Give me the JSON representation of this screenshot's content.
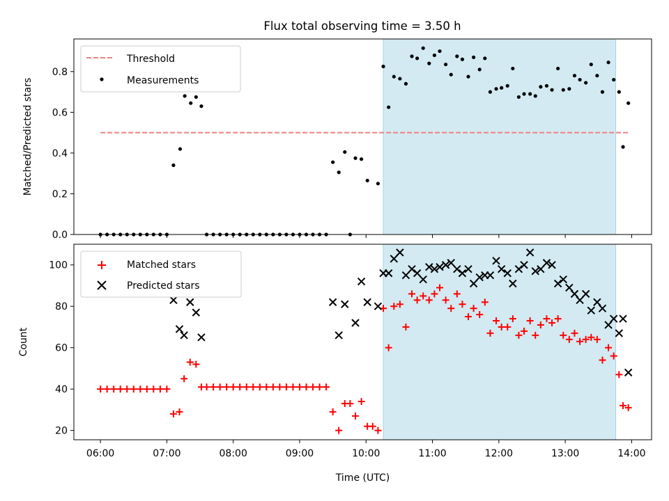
{
  "chart_data": [
    {
      "type": "scatter",
      "title": "Flux total observing time = 3.50 h",
      "xlabel": "",
      "ylabel": "Matched/Predicted stars",
      "xlim": [
        5.6,
        14.3
      ],
      "ylim": [
        0,
        0.96
      ],
      "yticks": [
        0,
        0.2,
        0.4,
        0.6,
        0.8
      ],
      "ytick_labels": [
        "0.0",
        "0.2",
        "0.4",
        "0.6",
        "0.8"
      ],
      "grid": false,
      "legend_position": "upper-left",
      "shaded_interval": {
        "start": 10.26,
        "end": 13.76,
        "color": "#d3eaf2"
      },
      "threshold": {
        "name": "Threshold",
        "value": 0.5,
        "x_start": 6.0,
        "x_end": 13.95,
        "color": "#f08080",
        "style": "dashed"
      },
      "series": [
        {
          "name": "Measurements",
          "marker": "dot",
          "color": "#000000",
          "points": [
            [
              6.0,
              0
            ],
            [
              6.1,
              0
            ],
            [
              6.2,
              0
            ],
            [
              6.3,
              0
            ],
            [
              6.4,
              0
            ],
            [
              6.5,
              0
            ],
            [
              6.6,
              0
            ],
            [
              6.7,
              0
            ],
            [
              6.8,
              0
            ],
            [
              6.9,
              0
            ],
            [
              7.0,
              0
            ],
            [
              7.1,
              0.34
            ],
            [
              7.2,
              0.42
            ],
            [
              7.27,
              0.68
            ],
            [
              7.36,
              0.645
            ],
            [
              7.44,
              0.675
            ],
            [
              7.52,
              0.63
            ],
            [
              7.6,
              0
            ],
            [
              7.7,
              0
            ],
            [
              7.8,
              0
            ],
            [
              7.9,
              0
            ],
            [
              8.0,
              0
            ],
            [
              8.1,
              0
            ],
            [
              8.2,
              0
            ],
            [
              8.3,
              0
            ],
            [
              8.4,
              0
            ],
            [
              8.5,
              0
            ],
            [
              8.6,
              0
            ],
            [
              8.7,
              0
            ],
            [
              8.8,
              0
            ],
            [
              8.9,
              0
            ],
            [
              9.0,
              0
            ],
            [
              9.1,
              0
            ],
            [
              9.2,
              0
            ],
            [
              9.3,
              0
            ],
            [
              9.4,
              0
            ],
            [
              9.5,
              0.355
            ],
            [
              9.59,
              0.305
            ],
            [
              9.68,
              0.405
            ],
            [
              9.76,
              0
            ],
            [
              9.84,
              0.375
            ],
            [
              9.93,
              0.37
            ],
            [
              10.02,
              0.265
            ],
            [
              10.18,
              0.25
            ],
            [
              10.26,
              0.825
            ],
            [
              10.34,
              0.625
            ],
            [
              10.42,
              0.775
            ],
            [
              10.51,
              0.765
            ],
            [
              10.6,
              0.74
            ],
            [
              10.69,
              0.875
            ],
            [
              10.77,
              0.865
            ],
            [
              10.86,
              0.915
            ],
            [
              10.95,
              0.84
            ],
            [
              11.03,
              0.88
            ],
            [
              11.11,
              0.9
            ],
            [
              11.2,
              0.835
            ],
            [
              11.28,
              0.785
            ],
            [
              11.37,
              0.875
            ],
            [
              11.45,
              0.86
            ],
            [
              11.54,
              0.775
            ],
            [
              11.62,
              0.87
            ],
            [
              11.71,
              0.81
            ],
            [
              11.79,
              0.865
            ],
            [
              11.87,
              0.7
            ],
            [
              11.96,
              0.715
            ],
            [
              12.04,
              0.72
            ],
            [
              12.13,
              0.73
            ],
            [
              12.21,
              0.815
            ],
            [
              12.3,
              0.675
            ],
            [
              12.38,
              0.69
            ],
            [
              12.47,
              0.69
            ],
            [
              12.55,
              0.68
            ],
            [
              12.63,
              0.725
            ],
            [
              12.72,
              0.73
            ],
            [
              12.8,
              0.71
            ],
            [
              12.89,
              0.815
            ],
            [
              12.97,
              0.71
            ],
            [
              13.06,
              0.715
            ],
            [
              13.14,
              0.78
            ],
            [
              13.22,
              0.76
            ],
            [
              13.31,
              0.745
            ],
            [
              13.39,
              0.835
            ],
            [
              13.48,
              0.78
            ],
            [
              13.56,
              0.7
            ],
            [
              13.65,
              0.845
            ],
            [
              13.73,
              0.76
            ],
            [
              13.81,
              0.7
            ],
            [
              13.87,
              0.43
            ],
            [
              13.95,
              0.645
            ]
          ]
        }
      ]
    },
    {
      "type": "scatter",
      "title": "",
      "xlabel": "Time (UTC)",
      "ylabel": "Count",
      "xlim": [
        5.6,
        14.3
      ],
      "ylim": [
        15.5,
        110
      ],
      "xticks": [
        6,
        7,
        8,
        9,
        10,
        11,
        12,
        13,
        14
      ],
      "xtick_labels": [
        "06:00",
        "07:00",
        "08:00",
        "09:00",
        "10:00",
        "11:00",
        "12:00",
        "13:00",
        "14:00"
      ],
      "yticks": [
        20,
        40,
        60,
        80,
        100
      ],
      "ytick_labels": [
        "20",
        "40",
        "60",
        "80",
        "100"
      ],
      "grid": false,
      "legend_position": "upper-left",
      "shaded_interval": {
        "start": 10.26,
        "end": 13.76,
        "color": "#d3eaf2"
      },
      "series": [
        {
          "name": "Matched stars",
          "marker": "plus",
          "color": "#ff0000",
          "points": [
            [
              6.0,
              40
            ],
            [
              6.1,
              40
            ],
            [
              6.2,
              40
            ],
            [
              6.3,
              40
            ],
            [
              6.4,
              40
            ],
            [
              6.5,
              40
            ],
            [
              6.6,
              40
            ],
            [
              6.7,
              40
            ],
            [
              6.8,
              40
            ],
            [
              6.9,
              40
            ],
            [
              7.0,
              40
            ],
            [
              7.1,
              28
            ],
            [
              7.19,
              29
            ],
            [
              7.26,
              45
            ],
            [
              7.35,
              53
            ],
            [
              7.44,
              52
            ],
            [
              7.52,
              41
            ],
            [
              7.6,
              41
            ],
            [
              7.7,
              41
            ],
            [
              7.8,
              41
            ],
            [
              7.9,
              41
            ],
            [
              8.0,
              41
            ],
            [
              8.1,
              41
            ],
            [
              8.2,
              41
            ],
            [
              8.3,
              41
            ],
            [
              8.4,
              41
            ],
            [
              8.5,
              41
            ],
            [
              8.6,
              41
            ],
            [
              8.7,
              41
            ],
            [
              8.8,
              41
            ],
            [
              8.9,
              41
            ],
            [
              9.0,
              41
            ],
            [
              9.1,
              41
            ],
            [
              9.2,
              41
            ],
            [
              9.3,
              41
            ],
            [
              9.4,
              41
            ],
            [
              9.5,
              29
            ],
            [
              9.59,
              20
            ],
            [
              9.68,
              33
            ],
            [
              9.76,
              33
            ],
            [
              9.84,
              27
            ],
            [
              9.93,
              34
            ],
            [
              10.02,
              22
            ],
            [
              10.1,
              22
            ],
            [
              10.18,
              20
            ],
            [
              10.26,
              79
            ],
            [
              10.34,
              60
            ],
            [
              10.42,
              80
            ],
            [
              10.51,
              81
            ],
            [
              10.6,
              70
            ],
            [
              10.69,
              86
            ],
            [
              10.77,
              83
            ],
            [
              10.86,
              85
            ],
            [
              10.95,
              83
            ],
            [
              11.03,
              86
            ],
            [
              11.11,
              89
            ],
            [
              11.2,
              83
            ],
            [
              11.28,
              79
            ],
            [
              11.37,
              86
            ],
            [
              11.45,
              81
            ],
            [
              11.54,
              75
            ],
            [
              11.62,
              79
            ],
            [
              11.71,
              76
            ],
            [
              11.79,
              82
            ],
            [
              11.87,
              67
            ],
            [
              11.96,
              73
            ],
            [
              12.04,
              70
            ],
            [
              12.13,
              70
            ],
            [
              12.21,
              74
            ],
            [
              12.3,
              66
            ],
            [
              12.38,
              68
            ],
            [
              12.47,
              73
            ],
            [
              12.55,
              66
            ],
            [
              12.63,
              71
            ],
            [
              12.72,
              74
            ],
            [
              12.8,
              72
            ],
            [
              12.89,
              74
            ],
            [
              12.97,
              66
            ],
            [
              13.06,
              64
            ],
            [
              13.14,
              67
            ],
            [
              13.22,
              63
            ],
            [
              13.31,
              64
            ],
            [
              13.39,
              65
            ],
            [
              13.48,
              64
            ],
            [
              13.56,
              54
            ],
            [
              13.65,
              60
            ],
            [
              13.73,
              56
            ],
            [
              13.81,
              47
            ],
            [
              13.87,
              32
            ],
            [
              13.95,
              31
            ]
          ]
        },
        {
          "name": "Predicted stars",
          "marker": "x",
          "color": "#000000",
          "points": [
            [
              7.1,
              83
            ],
            [
              7.19,
              69
            ],
            [
              7.26,
              66
            ],
            [
              7.35,
              82
            ],
            [
              7.44,
              77
            ],
            [
              7.52,
              65
            ],
            [
              9.5,
              82
            ],
            [
              9.59,
              66
            ],
            [
              9.68,
              81
            ],
            [
              9.84,
              72
            ],
            [
              9.93,
              92
            ],
            [
              10.02,
              82
            ],
            [
              10.18,
              80
            ],
            [
              10.26,
              96
            ],
            [
              10.34,
              96
            ],
            [
              10.42,
              103
            ],
            [
              10.51,
              106
            ],
            [
              10.6,
              95
            ],
            [
              10.69,
              98
            ],
            [
              10.77,
              96
            ],
            [
              10.86,
              93
            ],
            [
              10.95,
              99
            ],
            [
              11.03,
              98
            ],
            [
              11.11,
              99
            ],
            [
              11.2,
              100
            ],
            [
              11.28,
              101
            ],
            [
              11.37,
              98
            ],
            [
              11.45,
              96
            ],
            [
              11.54,
              98
            ],
            [
              11.62,
              91
            ],
            [
              11.71,
              94
            ],
            [
              11.79,
              95
            ],
            [
              11.87,
              95
            ],
            [
              11.96,
              102
            ],
            [
              12.04,
              98
            ],
            [
              12.13,
              96
            ],
            [
              12.21,
              91
            ],
            [
              12.3,
              98
            ],
            [
              12.38,
              100
            ],
            [
              12.47,
              106
            ],
            [
              12.55,
              97
            ],
            [
              12.63,
              98
            ],
            [
              12.72,
              101
            ],
            [
              12.8,
              100
            ],
            [
              12.89,
              91
            ],
            [
              12.97,
              93
            ],
            [
              13.06,
              89
            ],
            [
              13.14,
              86
            ],
            [
              13.22,
              83
            ],
            [
              13.31,
              86
            ],
            [
              13.39,
              78
            ],
            [
              13.48,
              82
            ],
            [
              13.56,
              79
            ],
            [
              13.65,
              71
            ],
            [
              13.73,
              74
            ],
            [
              13.81,
              67
            ],
            [
              13.87,
              74
            ],
            [
              13.95,
              48
            ]
          ]
        }
      ]
    }
  ]
}
